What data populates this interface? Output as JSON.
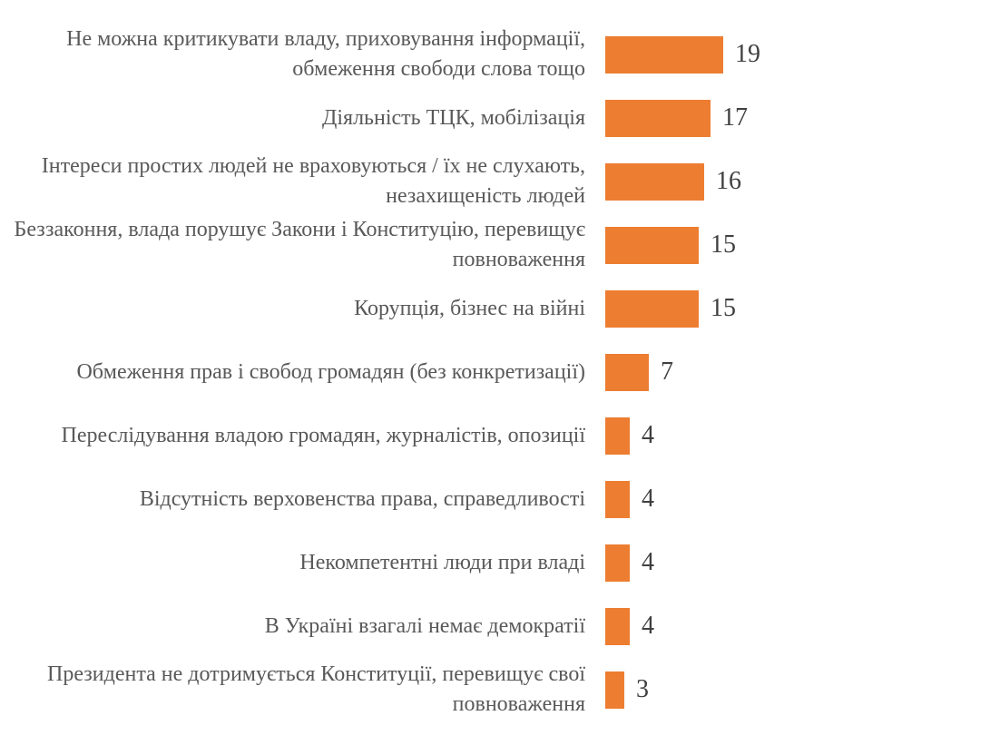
{
  "chart_data": {
    "type": "bar",
    "orientation": "horizontal",
    "title": "",
    "xlabel": "",
    "ylabel": "",
    "grid": false,
    "legend": false,
    "axis_lines": false,
    "data_labels": "outside-end",
    "bar_color": "#ED7D31",
    "category_label_color": "#595959",
    "value_label_color": "#404040",
    "background_color": "#FFFFFF",
    "xlim": [
      0,
      20
    ],
    "categories": [
      "Не можна критикувати владу, приховування інформації, обмеження свободи слова тощо",
      "Діяльність ТЦК, мобілізація",
      "Інтереси простих людей не враховуються / їх не слухають, незахищеність людей",
      "Беззаконня, влада порушує Закони і Конституцію, перевищує повноваження",
      "Корупція, бізнес на війні",
      "Обмеження прав і свобод громадян (без конкретизації)",
      "Переслідування владою громадян, журналістів, опозиції",
      "Відсутність верховенства права, справедливості",
      "Некомпетентні люди при владі",
      "В Україні взагалі немає демократії",
      "Президента не дотримується Конституції, перевищує свої повноваження"
    ],
    "values": [
      19,
      17,
      16,
      15,
      15,
      7,
      4,
      4,
      4,
      4,
      3
    ]
  }
}
